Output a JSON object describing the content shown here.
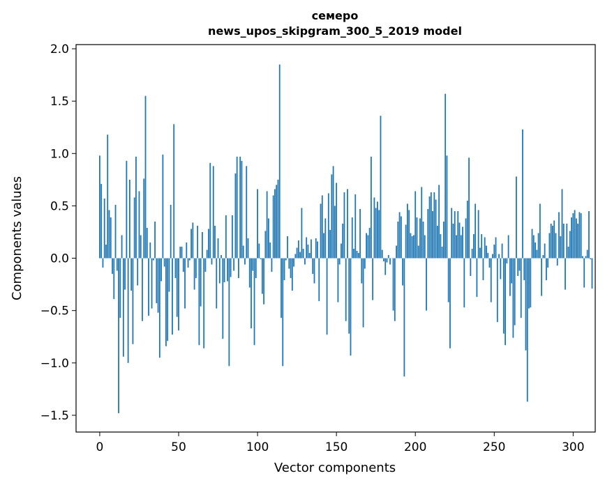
{
  "chart_data": {
    "type": "bar",
    "title_line1": "семеро",
    "title_line2": "news_upos_skipgram_300_5_2019 model",
    "xlabel": "Vector components",
    "ylabel": "Components values",
    "xlim": [
      -15,
      314
    ],
    "ylim": [
      -1.66,
      2.04
    ],
    "xticks": [
      0,
      50,
      100,
      150,
      200,
      250,
      300
    ],
    "yticks": [
      -1.5,
      -1.0,
      -0.5,
      0.0,
      0.5,
      1.0,
      1.5,
      2.0
    ],
    "ytick_labels": [
      "−1.5",
      "−1.0",
      "−0.5",
      "0.0",
      "0.5",
      "1.0",
      "1.5",
      "2.0"
    ],
    "bar_color": "#1f77b4",
    "values": [
      0.98,
      0.71,
      -0.09,
      0.57,
      0.13,
      1.18,
      0.46,
      0.39,
      -0.15,
      -0.39,
      0.51,
      -0.12,
      -1.48,
      -0.57,
      0.22,
      -0.94,
      -0.3,
      0.93,
      -1.0,
      0.75,
      -0.31,
      -0.82,
      0.58,
      0.97,
      -0.26,
      0.64,
      0.22,
      -0.6,
      0.76,
      1.55,
      0.29,
      -0.55,
      0.15,
      -0.48,
      -0.02,
      0.35,
      -0.43,
      -0.52,
      -0.95,
      -0.22,
      0.99,
      -0.08,
      -0.84,
      -0.79,
      -0.32,
      0.51,
      -0.73,
      1.28,
      -0.19,
      -0.56,
      -0.69,
      0.11,
      0.11,
      -0.13,
      -0.48,
      0.15,
      -0.09,
      -0.02,
      0.28,
      0.34,
      -0.3,
      -0.19,
      0.31,
      -0.83,
      -0.46,
      0.25,
      -0.86,
      -0.13,
      0.08,
      0.28,
      0.91,
      -0.06,
      0.88,
      0.31,
      -0.48,
      0.19,
      -0.24,
      0.03,
      -0.77,
      -0.23,
      0.41,
      -0.22,
      -1.03,
      -0.18,
      0.41,
      -0.12,
      0.81,
      0.97,
      -0.19,
      0.97,
      0.93,
      0.12,
      -0.06,
      0.88,
      0.19,
      -0.28,
      -0.67,
      -0.12,
      -0.83,
      -0.19,
      0.66,
      0.14,
      -0.01,
      -0.34,
      -0.44,
      0.26,
      0.64,
      0.38,
      0.15,
      -0.13,
      0.6,
      0.66,
      0.7,
      0.75,
      1.85,
      -0.57,
      -1.03,
      -0.21,
      -0.02,
      0.21,
      -0.1,
      -0.19,
      -0.31,
      -0.08,
      0.04,
      0.1,
      0.17,
      0.06,
      0.48,
      0.09,
      -0.06,
      0.2,
      0.13,
      0.05,
      0.18,
      -0.15,
      -0.24,
      0.19,
      0.16,
      -0.41,
      0.52,
      0.6,
      0.24,
      0.38,
      -0.73,
      0.62,
      0.27,
      0.8,
      0.88,
      0.5,
      0.72,
      -0.42,
      -0.06,
      0.14,
      0.33,
      0.63,
      -0.6,
      0.66,
      -0.72,
      -0.93,
      0.39,
      0.09,
      0.61,
      0.07,
      0.05,
      0.47,
      -0.24,
      -0.66,
      -0.1,
      0.24,
      0.22,
      0.29,
      0.97,
      -0.4,
      0.58,
      0.48,
      0.54,
      0.46,
      1.36,
      0.08,
      -0.03,
      -0.16,
      -0.04,
      0.03,
      -0.06,
      0.0,
      -0.5,
      -0.6,
      0.12,
      0.35,
      0.44,
      0.4,
      -0.26,
      -1.13,
      0.32,
      0.52,
      0.46,
      0.24,
      0.21,
      0.22,
      0.64,
      0.39,
      0.12,
      0.38,
      0.68,
      0.35,
      0.22,
      -0.5,
      0.47,
      0.59,
      0.63,
      0.45,
      0.63,
      0.56,
      0.31,
      0.7,
      0.23,
      0.11,
      0.35,
      1.57,
      0.98,
      -0.42,
      -0.86,
      0.48,
      0.33,
      0.45,
      0.22,
      0.45,
      0.34,
      0.22,
      0.3,
      -0.47,
      0.38,
      0.55,
      0.96,
      -0.17,
      0.09,
      0.23,
      0.52,
      -0.37,
      0.46,
      0.1,
      0.23,
      -0.21,
      0.2,
      0.12,
      0.05,
      -0.09,
      -0.42,
      0.04,
      0.13,
      0.2,
      -0.61,
      0.04,
      -0.2,
      0.14,
      -0.72,
      -0.83,
      -0.05,
      0.22,
      -0.36,
      -0.24,
      -0.76,
      -0.64,
      0.78,
      -0.17,
      -0.12,
      -0.57,
      1.23,
      -0.21,
      -0.88,
      -1.37,
      -0.48,
      -0.47,
      0.28,
      0.22,
      0.15,
      0.08,
      0.24,
      0.52,
      -0.36,
      0.03,
      0.14,
      -0.21,
      -0.09,
      0.24,
      0.33,
      0.31,
      0.36,
      0.24,
      -0.07,
      0.44,
      0.21,
      0.66,
      0.33,
      -0.3,
      0.33,
      0.11,
      0.26,
      0.39,
      0.43,
      0.46,
      0.38,
      0.33,
      0.44,
      0.43,
      0.02,
      -0.28,
      0.02,
      0.08,
      0.45,
      -0.01,
      -0.29
    ]
  }
}
